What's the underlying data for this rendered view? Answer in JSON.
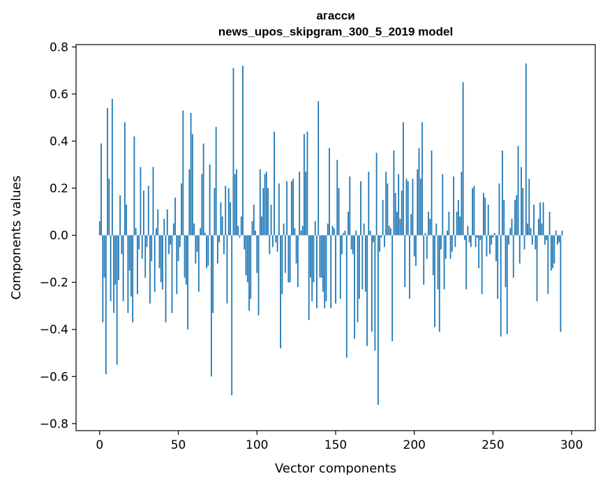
{
  "chart_data": {
    "type": "bar",
    "title_line1": "агасси",
    "title_line2": "news_upos_skipgram_300_5_2019 model",
    "xlabel": "Vector components",
    "ylabel": "Components values",
    "xlim": [
      -15,
      315
    ],
    "ylim": [
      -0.83,
      0.81
    ],
    "xticks": [
      0,
      50,
      100,
      150,
      200,
      250,
      300
    ],
    "xtick_labels": [
      "0",
      "50",
      "100",
      "150",
      "200",
      "250",
      "300"
    ],
    "yticks": [
      -0.8,
      -0.6,
      -0.4,
      -0.2,
      0.0,
      0.2,
      0.4,
      0.6,
      0.8
    ],
    "ytick_labels": [
      "−0.8",
      "−0.6",
      "−0.4",
      "−0.2",
      "0.0",
      "0.2",
      "0.4",
      "0.6",
      "0.8"
    ],
    "bar_color": "#1f77b4",
    "grid": false,
    "legend": "none",
    "values": [
      0.06,
      0.39,
      -0.37,
      -0.18,
      -0.59,
      0.54,
      0.24,
      -0.28,
      0.58,
      -0.33,
      -0.21,
      -0.55,
      -0.19,
      0.17,
      -0.08,
      -0.28,
      0.48,
      0.13,
      -0.33,
      -0.15,
      -0.26,
      -0.37,
      0.42,
      0.03,
      -0.25,
      -0.06,
      0.29,
      -0.1,
      0.19,
      -0.18,
      -0.05,
      0.21,
      -0.29,
      -0.11,
      0.29,
      -0.24,
      0.03,
      0.11,
      -0.14,
      -0.2,
      -0.23,
      0.07,
      -0.37,
      0.11,
      -0.08,
      -0.04,
      -0.33,
      0.05,
      0.16,
      -0.25,
      -0.11,
      -0.05,
      0.22,
      0.53,
      -0.18,
      -0.21,
      -0.4,
      0.28,
      0.52,
      0.43,
      0.05,
      -0.12,
      -0.07,
      -0.24,
      0.03,
      0.26,
      0.39,
      0.01,
      -0.14,
      -0.13,
      0.3,
      -0.6,
      -0.33,
      0.2,
      0.46,
      -0.12,
      -0.03,
      0.14,
      0.08,
      -0.08,
      0.21,
      -0.29,
      0.2,
      0.14,
      -0.68,
      0.71,
      0.26,
      0.28,
      0.04,
      -0.01,
      0.08,
      0.72,
      -0.06,
      -0.17,
      -0.2,
      -0.32,
      -0.27,
      0.06,
      0.13,
      0.02,
      -0.16,
      -0.34,
      0.28,
      0.08,
      0.2,
      0.26,
      0.27,
      0.2,
      -0.08,
      0.13,
      -0.05,
      0.44,
      -0.03,
      -0.07,
      0.22,
      -0.48,
      -0.25,
      0.05,
      -0.16,
      0.23,
      -0.2,
      -0.2,
      0.23,
      0.24,
      0.03,
      -0.12,
      -0.22,
      0.27,
      0.02,
      0.04,
      0.43,
      0.27,
      0.44,
      -0.36,
      -0.18,
      -0.28,
      -0.2,
      0.06,
      -0.31,
      0.57,
      -0.18,
      -0.18,
      -0.24,
      -0.31,
      -0.28,
      0.05,
      0.37,
      -0.31,
      0.04,
      0.03,
      -0.29,
      0.32,
      0.2,
      -0.27,
      -0.08,
      0.01,
      0.02,
      -0.52,
      0.1,
      0.25,
      -0.06,
      -0.08,
      -0.44,
      0.02,
      -0.37,
      -0.27,
      0.23,
      -0.23,
      0.05,
      -0.24,
      -0.47,
      0.27,
      0.02,
      -0.41,
      -0.03,
      -0.49,
      0.35,
      -0.72,
      -0.07,
      -0.01,
      0.15,
      -0.05,
      0.27,
      0.22,
      0.04,
      0.03,
      -0.45,
      0.36,
      0.18,
      0.1,
      0.26,
      0.07,
      0.19,
      0.48,
      -0.22,
      0.24,
      0.23,
      -0.27,
      0.09,
      0.24,
      -0.09,
      -0.13,
      0.28,
      0.37,
      0.24,
      0.48,
      -0.21,
      0.01,
      -0.1,
      0.1,
      0.07,
      0.36,
      -0.17,
      -0.39,
      0.05,
      -0.23,
      -0.41,
      -0.06,
      0.26,
      -0.23,
      -0.1,
      0.02,
      0.1,
      -0.1,
      -0.07,
      0.25,
      -0.05,
      0.1,
      0.15,
      0.08,
      0.27,
      0.65,
      -0.02,
      -0.23,
      0.04,
      -0.03,
      -0.05,
      0.2,
      0.21,
      -0.05,
      -0.01,
      -0.14,
      -0.02,
      -0.25,
      0.18,
      0.16,
      -0.09,
      0.13,
      -0.08,
      -0.04,
      -0.01,
      0.01,
      -0.11,
      -0.27,
      0.22,
      -0.43,
      0.36,
      0.15,
      -0.22,
      -0.42,
      -0.04,
      0.03,
      0.07,
      -0.18,
      0.15,
      0.17,
      0.38,
      -0.12,
      0.29,
      0.2,
      -0.06,
      0.73,
      0.05,
      0.24,
      0.03,
      -0.04,
      0.13,
      -0.06,
      -0.28,
      0.07,
      0.14,
      0.05,
      0.14,
      -0.04,
      -0.02,
      -0.25,
      0.1,
      -0.15,
      -0.14,
      -0.12,
      0.02,
      -0.04,
      -0.03,
      -0.41,
      0.02
    ]
  }
}
